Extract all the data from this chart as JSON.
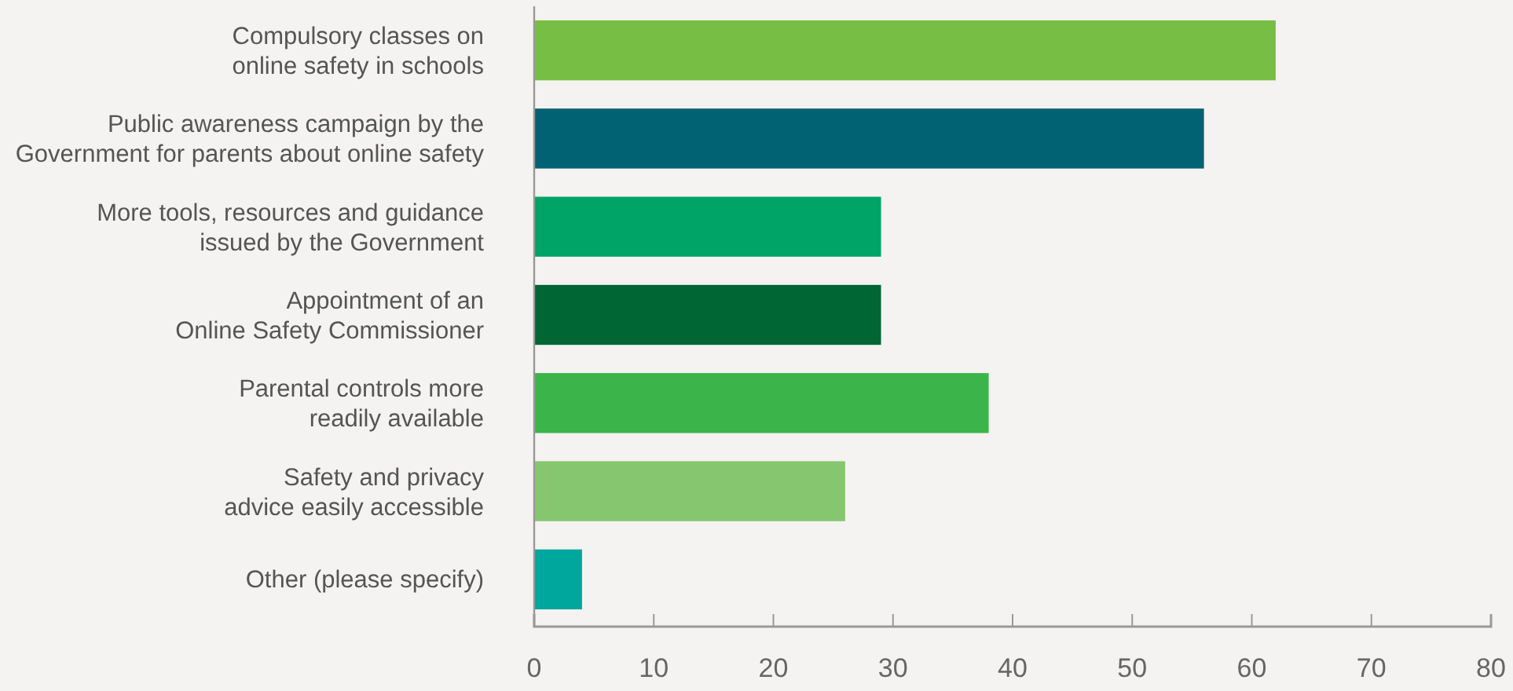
{
  "chart_data": {
    "type": "bar",
    "orientation": "horizontal",
    "categories": [
      "Compulsory classes on\nonline safety in schools",
      "Public awareness campaign by the\nGovernment for parents about online safety",
      "More tools, resources and guidance\nissued by the Government",
      "Appointment of an\nOnline Safety Commissioner",
      "Parental controls more\nreadily available",
      "Safety and privacy\nadvice easily accessible",
      "Other (please specify)"
    ],
    "values": [
      62,
      56,
      29,
      29,
      38,
      26,
      4
    ],
    "colors": [
      "#76bf44",
      "#006272",
      "#00a466",
      "#006633",
      "#3bb44a",
      "#86c66e",
      "#00a79d"
    ],
    "xlim": [
      0,
      80
    ],
    "xticks": [
      0,
      10,
      20,
      30,
      40,
      50,
      60,
      70,
      80
    ],
    "grid": false
  }
}
